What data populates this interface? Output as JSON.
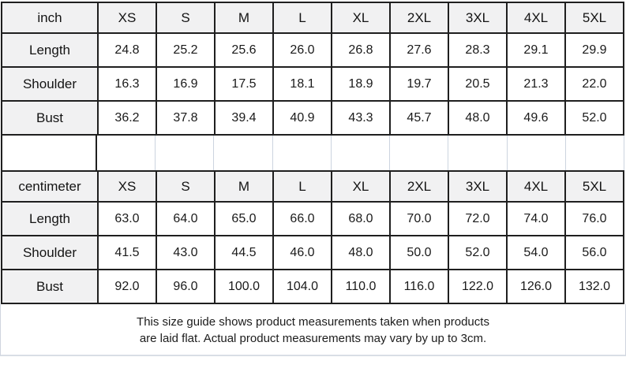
{
  "tables": [
    {
      "unit_label": "inch",
      "sizes": [
        "XS",
        "S",
        "M",
        "L",
        "XL",
        "2XL",
        "3XL",
        "4XL",
        "5XL"
      ],
      "rows": [
        {
          "label": "Length",
          "values": [
            "24.8",
            "25.2",
            "25.6",
            "26.0",
            "26.8",
            "27.6",
            "28.3",
            "29.1",
            "29.9"
          ]
        },
        {
          "label": "Shoulder",
          "values": [
            "16.3",
            "16.9",
            "17.5",
            "18.1",
            "18.9",
            "19.7",
            "20.5",
            "21.3",
            "22.0"
          ]
        },
        {
          "label": "Bust",
          "values": [
            "36.2",
            "37.8",
            "39.4",
            "40.9",
            "43.3",
            "45.7",
            "48.0",
            "49.6",
            "52.0"
          ]
        }
      ]
    },
    {
      "unit_label": "centimeter",
      "sizes": [
        "XS",
        "S",
        "M",
        "L",
        "XL",
        "2XL",
        "3XL",
        "4XL",
        "5XL"
      ],
      "rows": [
        {
          "label": "Length",
          "values": [
            "63.0",
            "64.0",
            "65.0",
            "66.0",
            "68.0",
            "70.0",
            "72.0",
            "74.0",
            "76.0"
          ]
        },
        {
          "label": "Shoulder",
          "values": [
            "41.5",
            "43.0",
            "44.5",
            "46.0",
            "48.0",
            "50.0",
            "52.0",
            "54.0",
            "56.0"
          ]
        },
        {
          "label": "Bust",
          "values": [
            "92.0",
            "96.0",
            "100.0",
            "104.0",
            "110.0",
            "116.0",
            "122.0",
            "126.0",
            "132.0"
          ]
        }
      ]
    }
  ],
  "footer": {
    "line1": "This size guide shows product measurements taken when products",
    "line2": "are laid flat. Actual product measurements may vary by up to 3cm."
  },
  "colors": {
    "header_bg": "#f1f1f2",
    "border_dark": "#1f1f1f",
    "border_light": "#ccd4df",
    "text": "#1a1a1a"
  }
}
